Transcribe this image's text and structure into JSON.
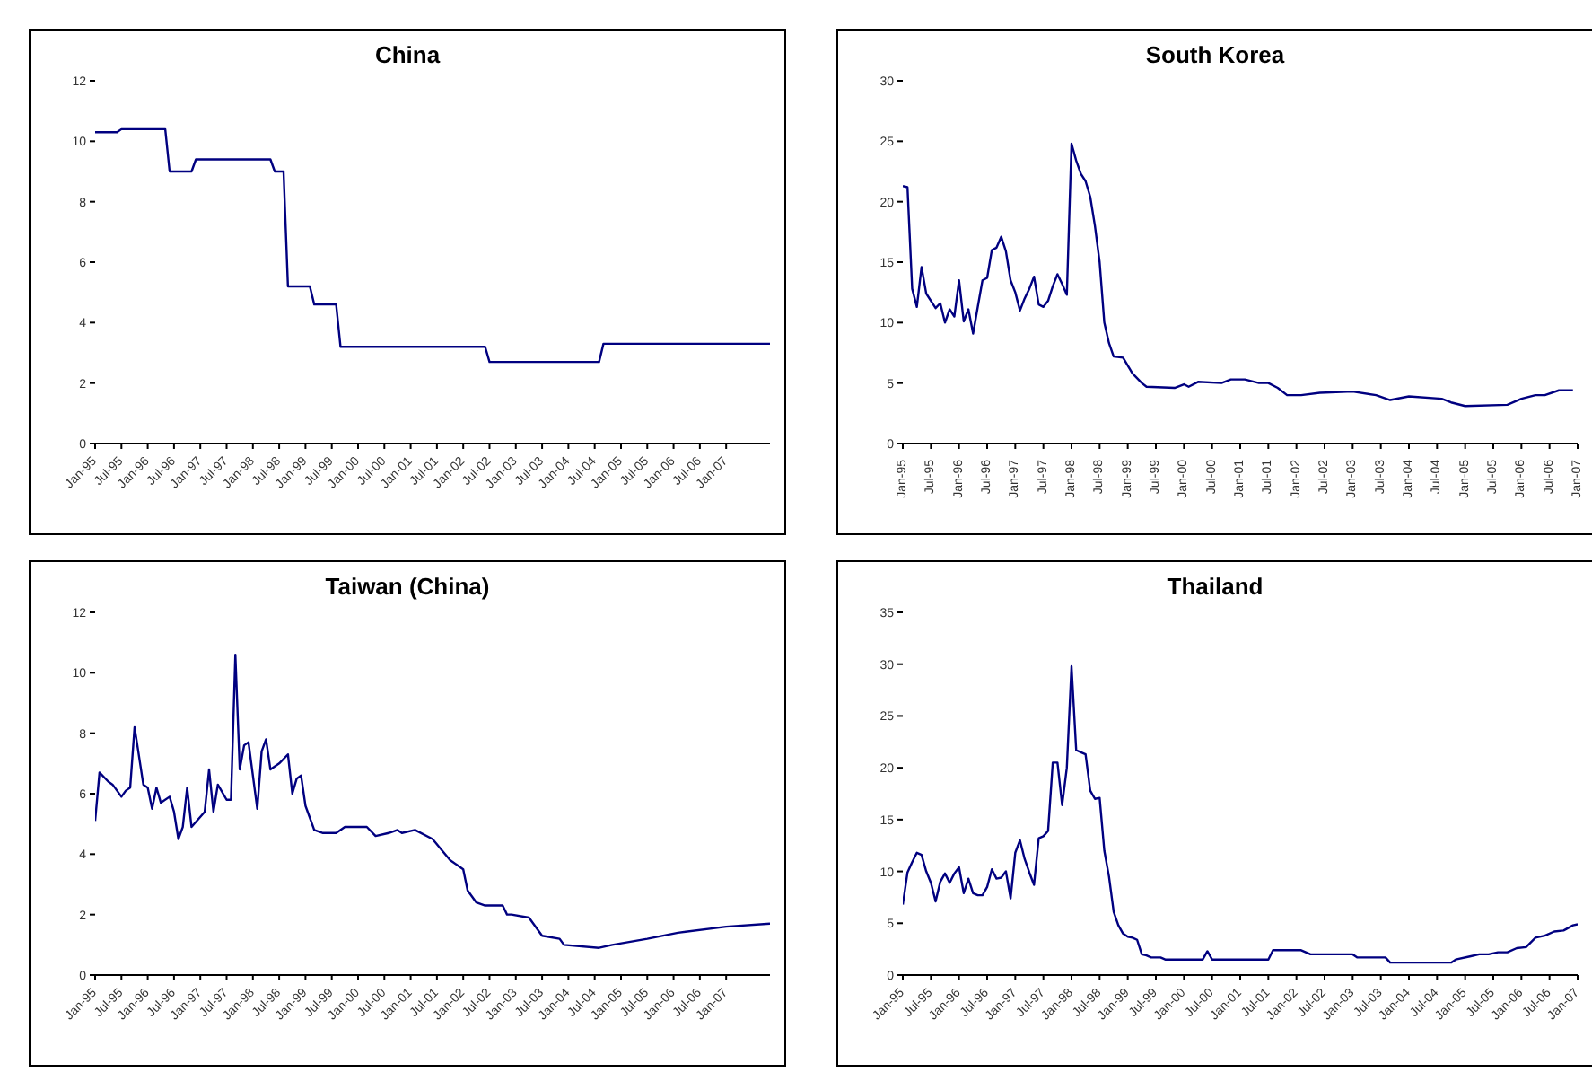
{
  "chart_data": [
    {
      "type": "line",
      "title": "China",
      "color": "#000080",
      "xlim": [
        "1995-01",
        "2007-11"
      ],
      "ylim": [
        0,
        12
      ],
      "yticks": [
        0,
        2,
        4,
        6,
        8,
        10,
        12
      ],
      "xticks": [
        {
          "value": "1995-01",
          "label": "Jan-95"
        },
        {
          "value": "1995-07",
          "label": "Jul-95"
        },
        {
          "value": "1996-01",
          "label": "Jan-96"
        },
        {
          "value": "1996-07",
          "label": "Jul-96"
        },
        {
          "value": "1997-01",
          "label": "Jan-97"
        },
        {
          "value": "1997-07",
          "label": "Jul-97"
        },
        {
          "value": "1998-01",
          "label": "Jan-98"
        },
        {
          "value": "1998-07",
          "label": "Jul-98"
        },
        {
          "value": "1999-01",
          "label": "Jan-99"
        },
        {
          "value": "1999-07",
          "label": "Jul-99"
        },
        {
          "value": "2000-01",
          "label": "Jan-00"
        },
        {
          "value": "2000-07",
          "label": "Jul-00"
        },
        {
          "value": "2001-01",
          "label": "Jan-01"
        },
        {
          "value": "2001-07",
          "label": "Jul-01"
        },
        {
          "value": "2002-01",
          "label": "Jan-02"
        },
        {
          "value": "2002-07",
          "label": "Jul-02"
        },
        {
          "value": "2003-01",
          "label": "Jan-03"
        },
        {
          "value": "2003-07",
          "label": "Jul-03"
        },
        {
          "value": "2004-01",
          "label": "Jan-04"
        },
        {
          "value": "2004-07",
          "label": "Jul-04"
        },
        {
          "value": "2005-01",
          "label": "Jan-05"
        },
        {
          "value": "2005-07",
          "label": "Jul-05"
        },
        {
          "value": "2006-01",
          "label": "Jan-06"
        },
        {
          "value": "2006-07",
          "label": "Jul-06"
        },
        {
          "value": "2007-01",
          "label": "Jan-07"
        }
      ],
      "x": [
        "1995-01",
        "1995-06",
        "1995-07",
        "1996-05",
        "1996-06",
        "1996-11",
        "1996-12",
        "1998-05",
        "1998-06",
        "1998-08",
        "1998-09",
        "1999-02",
        "1999-03",
        "1999-08",
        "1999-09",
        "2002-06",
        "2002-07",
        "2004-08",
        "2004-09",
        "2007-11"
      ],
      "values": [
        10.3,
        10.3,
        10.4,
        10.4,
        9.0,
        9.0,
        9.4,
        9.4,
        9.0,
        9.0,
        5.2,
        5.2,
        4.6,
        4.6,
        3.2,
        3.2,
        2.7,
        2.7,
        3.3,
        3.3
      ]
    },
    {
      "type": "line",
      "title": "South Korea",
      "color": "#000080",
      "xlim": [
        "1995-01",
        "2007-01"
      ],
      "ylim": [
        0,
        30
      ],
      "yticks": [
        0,
        5,
        10,
        15,
        20,
        25,
        30
      ],
      "xticks": [
        {
          "value": "1995-01",
          "label": "Jan-95"
        },
        {
          "value": "1995-07",
          "label": "Jul-95"
        },
        {
          "value": "1996-01",
          "label": "Jan-96"
        },
        {
          "value": "1996-07",
          "label": "Jul-96"
        },
        {
          "value": "1997-01",
          "label": "Jan-97"
        },
        {
          "value": "1997-07",
          "label": "Jul-97"
        },
        {
          "value": "1998-01",
          "label": "Jan-98"
        },
        {
          "value": "1998-07",
          "label": "Jul-98"
        },
        {
          "value": "1999-01",
          "label": "Jan-99"
        },
        {
          "value": "1999-07",
          "label": "Jul-99"
        },
        {
          "value": "2000-01",
          "label": "Jan-00"
        },
        {
          "value": "2000-07",
          "label": "Jul-00"
        },
        {
          "value": "2001-01",
          "label": "Jan-01"
        },
        {
          "value": "2001-07",
          "label": "Jul-01"
        },
        {
          "value": "2002-01",
          "label": "Jan-02"
        },
        {
          "value": "2002-07",
          "label": "Jul-02"
        },
        {
          "value": "2003-01",
          "label": "Jan-03"
        },
        {
          "value": "2003-07",
          "label": "Jul-03"
        },
        {
          "value": "2004-01",
          "label": "Jan-04"
        },
        {
          "value": "2004-07",
          "label": "Jul-04"
        },
        {
          "value": "2005-01",
          "label": "Jan-05"
        },
        {
          "value": "2005-07",
          "label": "Jul-05"
        },
        {
          "value": "2006-01",
          "label": "Jan-06"
        },
        {
          "value": "2006-07",
          "label": "Jul-06"
        },
        {
          "value": "2007-01",
          "label": "Jan-07"
        }
      ],
      "x": [
        "1995-01",
        "1995-02",
        "1995-03",
        "1995-04",
        "1995-05",
        "1995-06",
        "1995-08",
        "1995-09",
        "1995-10",
        "1995-11",
        "1995-12",
        "1996-01",
        "1996-02",
        "1996-03",
        "1996-04",
        "1996-05",
        "1996-06",
        "1996-07",
        "1996-08",
        "1996-09",
        "1996-10",
        "1996-11",
        "1996-12",
        "1997-01",
        "1997-02",
        "1997-03",
        "1997-04",
        "1997-05",
        "1997-06",
        "1997-07",
        "1997-08",
        "1997-09",
        "1997-10",
        "1997-11",
        "1997-12",
        "1998-01",
        "1998-02",
        "1998-03",
        "1998-04",
        "1998-05",
        "1998-06",
        "1998-07",
        "1998-08",
        "1998-09",
        "1998-10",
        "1998-12",
        "1999-02",
        "1999-04",
        "1999-05",
        "1999-11",
        "2000-01",
        "2000-02",
        "2000-04",
        "2000-09",
        "2000-11",
        "2001-02",
        "2001-05",
        "2001-07",
        "2001-09",
        "2001-11",
        "2002-02",
        "2002-06",
        "2003-01",
        "2003-06",
        "2003-09",
        "2004-01",
        "2004-08",
        "2004-10",
        "2005-01",
        "2005-10",
        "2006-01",
        "2006-04",
        "2006-06",
        "2006-09",
        "2006-12"
      ],
      "values": [
        21.3,
        21.2,
        12.8,
        11.3,
        14.6,
        12.4,
        11.2,
        11.6,
        10.0,
        11.1,
        10.5,
        13.5,
        10.1,
        11.1,
        9.1,
        11.3,
        13.5,
        13.7,
        16.0,
        16.2,
        17.1,
        15.9,
        13.5,
        12.5,
        11.0,
        12.0,
        12.8,
        13.8,
        11.5,
        11.3,
        11.8,
        13.0,
        14.0,
        13.2,
        12.3,
        24.8,
        23.4,
        22.3,
        21.7,
        20.4,
        18.0,
        15.0,
        10.0,
        8.3,
        7.2,
        7.1,
        5.8,
        5.0,
        4.7,
        4.6,
        4.9,
        4.7,
        5.1,
        5.0,
        5.3,
        5.3,
        5.0,
        5.0,
        4.6,
        4.0,
        4.0,
        4.2,
        4.3,
        4.0,
        3.6,
        3.9,
        3.7,
        3.4,
        3.1,
        3.2,
        3.7,
        4.0,
        4.0,
        4.4,
        4.4
      ]
    },
    {
      "type": "line",
      "title": "Taiwan (China)",
      "color": "#000080",
      "xlim": [
        "1995-01",
        "2007-11"
      ],
      "ylim": [
        0,
        12
      ],
      "yticks": [
        0,
        2,
        4,
        6,
        8,
        10,
        12
      ],
      "xticks": [
        {
          "value": "1995-01",
          "label": "Jan-95"
        },
        {
          "value": "1995-07",
          "label": "Jul-95"
        },
        {
          "value": "1996-01",
          "label": "Jan-96"
        },
        {
          "value": "1996-07",
          "label": "Jul-96"
        },
        {
          "value": "1997-01",
          "label": "Jan-97"
        },
        {
          "value": "1997-07",
          "label": "Jul-97"
        },
        {
          "value": "1998-01",
          "label": "Jan-98"
        },
        {
          "value": "1998-07",
          "label": "Jul-98"
        },
        {
          "value": "1999-01",
          "label": "Jan-99"
        },
        {
          "value": "1999-07",
          "label": "Jul-99"
        },
        {
          "value": "2000-01",
          "label": "Jan-00"
        },
        {
          "value": "2000-07",
          "label": "Jul-00"
        },
        {
          "value": "2001-01",
          "label": "Jan-01"
        },
        {
          "value": "2001-07",
          "label": "Jul-01"
        },
        {
          "value": "2002-01",
          "label": "Jan-02"
        },
        {
          "value": "2002-07",
          "label": "Jul-02"
        },
        {
          "value": "2003-01",
          "label": "Jan-03"
        },
        {
          "value": "2003-07",
          "label": "Jul-03"
        },
        {
          "value": "2004-01",
          "label": "Jan-04"
        },
        {
          "value": "2004-07",
          "label": "Jul-04"
        },
        {
          "value": "2005-01",
          "label": "Jan-05"
        },
        {
          "value": "2005-07",
          "label": "Jul-05"
        },
        {
          "value": "2006-01",
          "label": "Jan-06"
        },
        {
          "value": "2006-07",
          "label": "Jul-06"
        },
        {
          "value": "2007-01",
          "label": "Jan-07"
        }
      ],
      "x": [
        "1995-01",
        "1995-02",
        "1995-04",
        "1995-05",
        "1995-07",
        "1995-08",
        "1995-09",
        "1995-10",
        "1995-12",
        "1996-01",
        "1996-02",
        "1996-03",
        "1996-04",
        "1996-06",
        "1996-07",
        "1996-08",
        "1996-09",
        "1996-10",
        "1996-11",
        "1997-02",
        "1997-03",
        "1997-04",
        "1997-05",
        "1997-07",
        "1997-08",
        "1997-09",
        "1997-10",
        "1997-11",
        "1997-12",
        "1998-02",
        "1998-03",
        "1998-04",
        "1998-05",
        "1998-07",
        "1998-09",
        "1998-10",
        "1998-11",
        "1998-12",
        "1999-01",
        "1999-03",
        "1999-05",
        "1999-08",
        "1999-10",
        "2000-03",
        "2000-05",
        "2000-08",
        "2000-10",
        "2000-11",
        "2001-02",
        "2001-06",
        "2001-10",
        "2002-01",
        "2002-02",
        "2002-04",
        "2002-06",
        "2002-10",
        "2002-11",
        "2002-12",
        "2003-04",
        "2003-07",
        "2003-11",
        "2003-12",
        "2004-08",
        "2004-11",
        "2005-07",
        "2006-02",
        "2007-01",
        "2007-11"
      ],
      "values": [
        5.1,
        6.7,
        6.4,
        6.3,
        5.9,
        6.1,
        6.2,
        8.2,
        6.3,
        6.2,
        5.5,
        6.2,
        5.7,
        5.9,
        5.4,
        4.5,
        4.9,
        6.2,
        4.9,
        5.4,
        6.8,
        5.4,
        6.3,
        5.8,
        5.8,
        10.6,
        6.8,
        7.6,
        7.7,
        5.5,
        7.4,
        7.8,
        6.8,
        7.0,
        7.3,
        6.0,
        6.5,
        6.6,
        5.6,
        4.8,
        4.7,
        4.7,
        4.9,
        4.9,
        4.6,
        4.7,
        4.8,
        4.7,
        4.8,
        4.5,
        3.8,
        3.5,
        2.8,
        2.4,
        2.3,
        2.3,
        2.0,
        2.0,
        1.9,
        1.3,
        1.2,
        1.0,
        0.9,
        1.0,
        1.2,
        1.4,
        1.6,
        1.7
      ]
    },
    {
      "type": "line",
      "title": "Thailand",
      "color": "#000080",
      "xlim": [
        "1995-01",
        "2007-01"
      ],
      "ylim": [
        0,
        35
      ],
      "yticks": [
        0,
        5,
        10,
        15,
        20,
        25,
        30,
        35
      ],
      "xticks": [
        {
          "value": "1995-01",
          "label": "Jan-95"
        },
        {
          "value": "1995-07",
          "label": "Jul-95"
        },
        {
          "value": "1996-01",
          "label": "Jan-96"
        },
        {
          "value": "1996-07",
          "label": "Jul-96"
        },
        {
          "value": "1997-01",
          "label": "Jan-97"
        },
        {
          "value": "1997-07",
          "label": "Jul-97"
        },
        {
          "value": "1998-01",
          "label": "Jan-98"
        },
        {
          "value": "1998-07",
          "label": "Jul-98"
        },
        {
          "value": "1999-01",
          "label": "Jan-99"
        },
        {
          "value": "1999-07",
          "label": "Jul-99"
        },
        {
          "value": "2000-01",
          "label": "Jan-00"
        },
        {
          "value": "2000-07",
          "label": "Jul-00"
        },
        {
          "value": "2001-01",
          "label": "Jan-01"
        },
        {
          "value": "2001-07",
          "label": "Jul-01"
        },
        {
          "value": "2002-01",
          "label": "Jan-02"
        },
        {
          "value": "2002-07",
          "label": "Jul-02"
        },
        {
          "value": "2003-01",
          "label": "Jan-03"
        },
        {
          "value": "2003-07",
          "label": "Jul-03"
        },
        {
          "value": "2004-01",
          "label": "Jan-04"
        },
        {
          "value": "2004-07",
          "label": "Jul-04"
        },
        {
          "value": "2005-01",
          "label": "Jan-05"
        },
        {
          "value": "2005-07",
          "label": "Jul-05"
        },
        {
          "value": "2006-01",
          "label": "Jan-06"
        },
        {
          "value": "2006-07",
          "label": "Jul-06"
        },
        {
          "value": "2007-01",
          "label": "Jan-07"
        }
      ],
      "x": [
        "1995-01",
        "1995-02",
        "1995-03",
        "1995-04",
        "1995-05",
        "1995-06",
        "1995-07",
        "1995-08",
        "1995-09",
        "1995-10",
        "1995-11",
        "1995-12",
        "1996-01",
        "1996-02",
        "1996-03",
        "1996-04",
        "1996-05",
        "1996-06",
        "1996-07",
        "1996-08",
        "1996-09",
        "1996-10",
        "1996-11",
        "1996-12",
        "1997-01",
        "1997-02",
        "1997-03",
        "1997-04",
        "1997-05",
        "1997-06",
        "1997-07",
        "1997-08",
        "1997-09",
        "1997-10",
        "1997-11",
        "1997-12",
        "1998-01",
        "1998-02",
        "1998-03",
        "1998-04",
        "1998-05",
        "1998-06",
        "1998-07",
        "1998-08",
        "1998-09",
        "1998-10",
        "1998-11",
        "1998-12",
        "1999-01",
        "1999-02",
        "1999-03",
        "1999-04",
        "1999-05",
        "1999-06",
        "1999-08",
        "1999-09",
        "2000-05",
        "2000-06",
        "2000-07",
        "2001-07",
        "2001-08",
        "2002-02",
        "2002-04",
        "2003-01",
        "2003-02",
        "2003-08",
        "2003-09",
        "2004-10",
        "2004-11",
        "2005-02",
        "2005-04",
        "2005-06",
        "2005-08",
        "2005-10",
        "2005-12",
        "2006-02",
        "2006-04",
        "2006-06",
        "2006-08",
        "2006-10",
        "2006-12",
        "2007-01"
      ],
      "values": [
        6.8,
        9.9,
        10.9,
        11.8,
        11.6,
        10.0,
        8.9,
        7.1,
        9.0,
        9.8,
        8.9,
        9.8,
        10.4,
        7.9,
        9.3,
        7.9,
        7.7,
        7.7,
        8.5,
        10.2,
        9.3,
        9.4,
        10.0,
        7.4,
        11.8,
        13.0,
        11.2,
        9.9,
        8.7,
        13.2,
        13.4,
        13.9,
        20.5,
        20.5,
        16.4,
        20.0,
        29.8,
        21.7,
        21.5,
        21.3,
        17.8,
        17.0,
        17.1,
        12.0,
        9.5,
        6.1,
        4.8,
        4.0,
        3.7,
        3.6,
        3.4,
        2.0,
        1.9,
        1.7,
        1.7,
        1.5,
        1.5,
        2.3,
        1.5,
        1.5,
        2.4,
        2.4,
        2.0,
        2.0,
        1.7,
        1.7,
        1.2,
        1.2,
        1.5,
        1.8,
        2.0,
        2.0,
        2.2,
        2.2,
        2.6,
        2.7,
        3.6,
        3.8,
        4.2,
        4.3,
        4.8,
        4.9
      ]
    }
  ]
}
